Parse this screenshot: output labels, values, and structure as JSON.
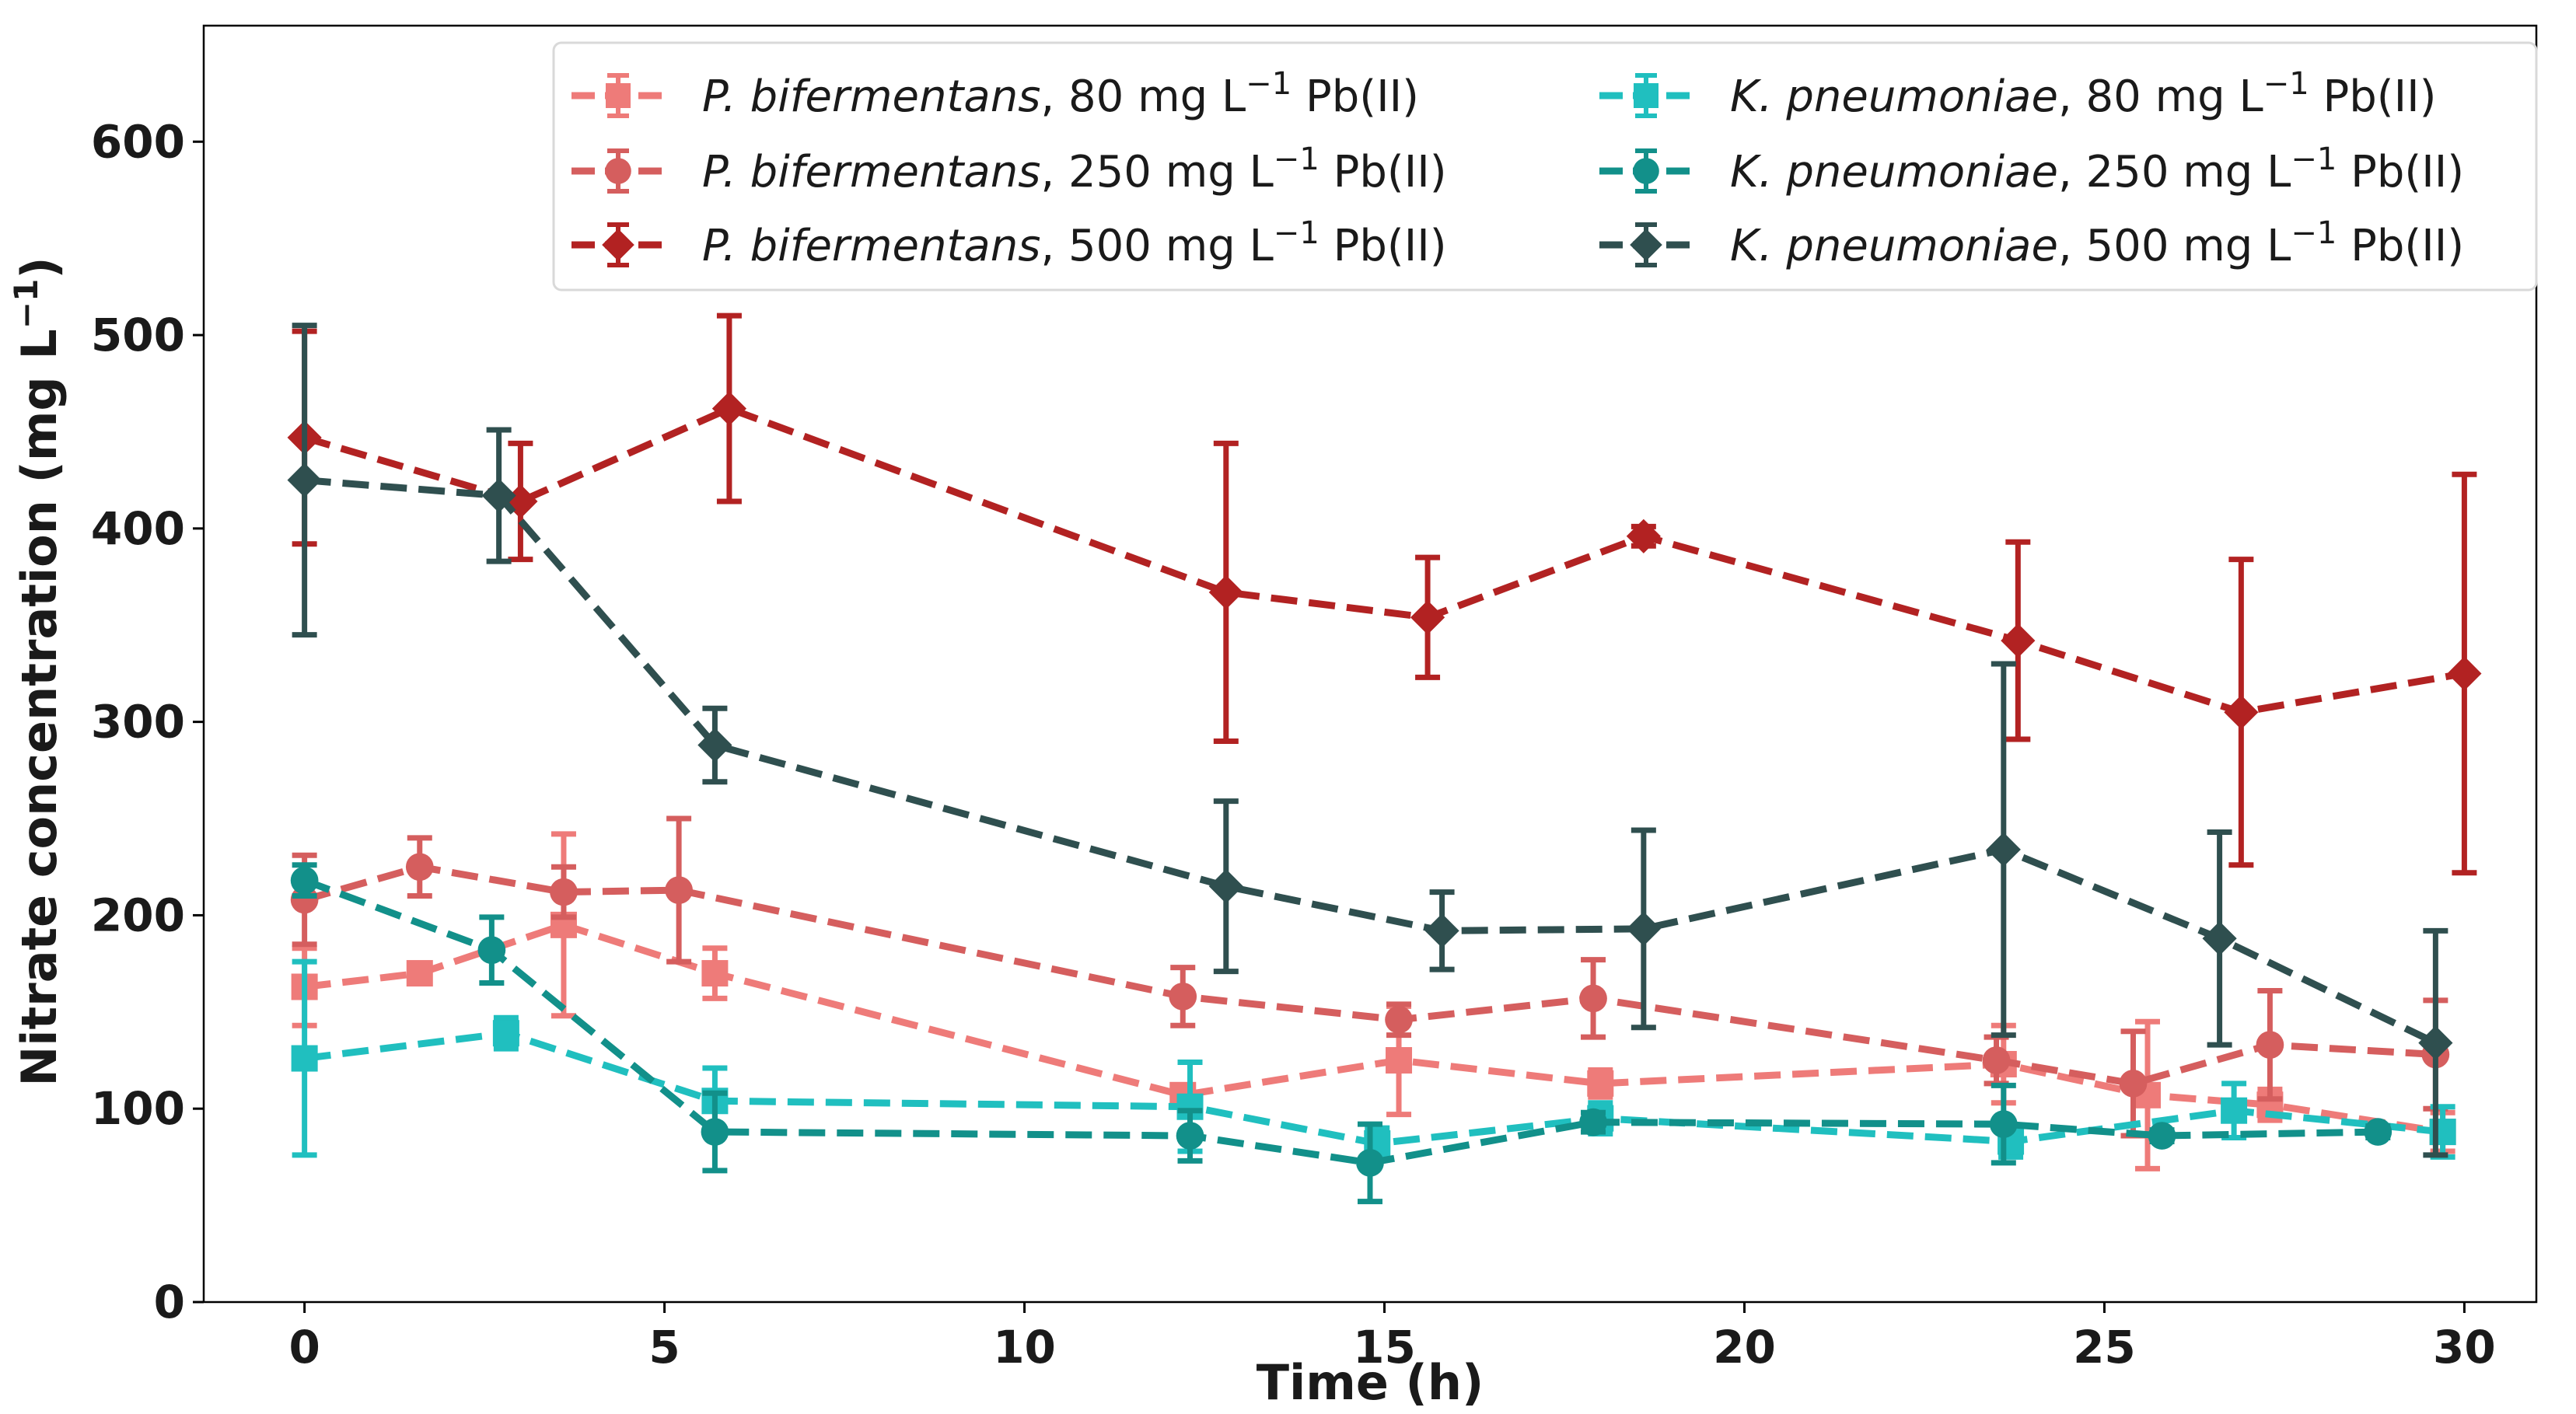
{
  "chart_data": {
    "type": "line",
    "title": "",
    "xlabel": "Time (h)",
    "ylabel": "Nitrate concentration (mg L⁻¹)",
    "ylabel_parts": {
      "pre": "Nitrate concentration (mg L",
      "sup": "−1",
      "post": ")"
    },
    "xlim": [
      -1.4,
      31.0
    ],
    "ylim": [
      0,
      660
    ],
    "x_ticks": [
      0,
      5,
      10,
      15,
      20,
      25,
      30
    ],
    "y_ticks": [
      0,
      100,
      200,
      300,
      400,
      500,
      600
    ],
    "grid": false,
    "legend_position": "top-right",
    "series": [
      {
        "name": "P. bifermentans, 80 mg L−1 Pb(II)",
        "species": "P. bifermentans",
        "conc_text": ", 80 mg L",
        "sup": "−1",
        "suffix": " Pb(II)",
        "color": "#ee7b79",
        "marker": "square",
        "x": [
          0,
          1.6,
          3.6,
          5.7,
          12.2,
          15.2,
          18.0,
          23.6,
          25.6,
          27.3,
          29.7
        ],
        "y": [
          163,
          170,
          195,
          170,
          107,
          125,
          113,
          123,
          107,
          102,
          88
        ],
        "err": [
          20,
          5,
          47,
          13,
          5,
          28,
          7,
          20,
          38,
          8,
          10
        ]
      },
      {
        "name": "P. bifermentans, 250 mg L−1 Pb(II)",
        "species": "P. bifermentans",
        "conc_text": ", 250 mg L",
        "sup": "−1",
        "suffix": " Pb(II)",
        "color": "#d55e5e",
        "marker": "circle",
        "x": [
          0,
          1.6,
          3.6,
          5.2,
          12.2,
          15.2,
          17.9,
          23.5,
          25.4,
          27.3,
          29.6
        ],
        "y": [
          208,
          225,
          212,
          213,
          158,
          146,
          157,
          125,
          113,
          133,
          128
        ],
        "err": [
          23,
          15,
          13,
          37,
          15,
          8,
          20,
          12,
          27,
          28,
          28
        ]
      },
      {
        "name": "P. bifermentans, 500 mg L−1 Pb(II)",
        "species": "P. bifermentans",
        "conc_text": ", 500 mg L",
        "sup": "−1",
        "suffix": " Pb(II)",
        "color": "#b22222",
        "marker": "diamond",
        "x": [
          0,
          3.0,
          5.9,
          12.8,
          15.6,
          18.6,
          23.8,
          26.9,
          30.0
        ],
        "y": [
          447,
          414,
          462,
          367,
          354,
          396,
          342,
          305,
          325
        ],
        "err": [
          55,
          30,
          48,
          77,
          31,
          5,
          51,
          79,
          103
        ]
      },
      {
        "name": "K. pneumoniae, 80 mg L−1 Pb(II)",
        "species": "K. pneumoniae",
        "conc_text": ", 80 mg L",
        "sup": "−1",
        "suffix": " Pb(II)",
        "color": "#20bfbf",
        "marker": "square",
        "x": [
          0,
          2.8,
          5.7,
          12.3,
          14.9,
          18.0,
          23.7,
          26.8,
          29.7
        ],
        "y": [
          126,
          139,
          104,
          101,
          82,
          95,
          83,
          99,
          88
        ],
        "err": [
          50,
          8,
          17,
          23,
          8,
          8,
          8,
          14,
          13
        ]
      },
      {
        "name": "K. pneumoniae, 250 mg L−1 Pb(II)",
        "species": "K. pneumoniae",
        "conc_text": ", 250 mg L",
        "sup": "−1",
        "suffix": " Pb(II)",
        "color": "#12908a",
        "marker": "circle",
        "x": [
          0,
          2.6,
          5.7,
          12.3,
          14.8,
          17.9,
          23.6,
          25.8,
          28.8
        ],
        "y": [
          218,
          182,
          88,
          86,
          72,
          93,
          92,
          86,
          88
        ],
        "err": [
          8,
          17,
          20,
          13,
          20,
          5,
          20,
          3,
          3
        ]
      },
      {
        "name": "K. pneumoniae, 500 mg L−1 Pb(II)",
        "species": "K. pneumoniae",
        "conc_text": ", 500 mg L",
        "sup": "−1",
        "suffix": " Pb(II)",
        "color": "#2f4f4f",
        "marker": "diamond",
        "x": [
          0,
          2.7,
          5.7,
          12.8,
          15.8,
          18.6,
          23.6,
          26.6,
          29.6
        ],
        "y": [
          425,
          417,
          288,
          215,
          192,
          193,
          234,
          188,
          134
        ],
        "err": [
          80,
          34,
          19,
          44,
          20,
          51,
          96,
          55,
          58
        ]
      }
    ]
  }
}
